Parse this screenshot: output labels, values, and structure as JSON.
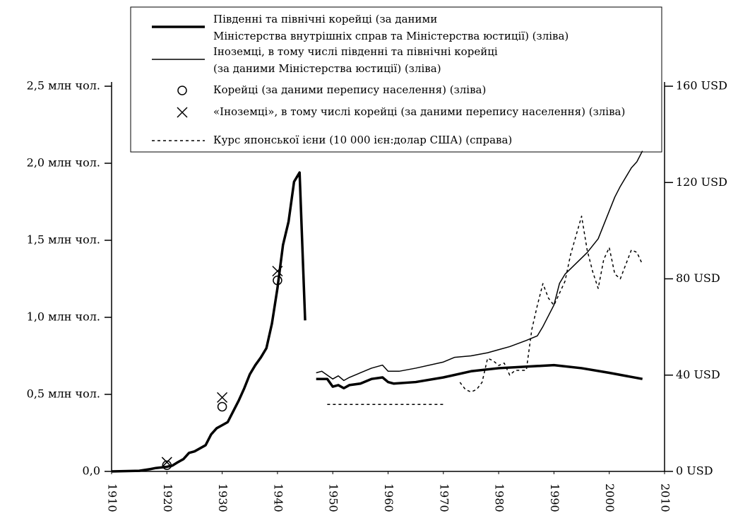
{
  "chart_data": {
    "type": "line",
    "xlim": [
      1910,
      2010
    ],
    "xticks": [
      1910,
      1920,
      1930,
      1940,
      1950,
      1960,
      1970,
      1980,
      1990,
      2000,
      2010
    ],
    "ylim": [
      0,
      2.5
    ],
    "yticks": [
      {
        "value": 0,
        "label": "0,0"
      },
      {
        "value": 0.5,
        "label": "0,5 млн чол."
      },
      {
        "value": 1,
        "label": "1,0 млн чол."
      },
      {
        "value": 1.5,
        "label": "1,5 млн чол."
      },
      {
        "value": 2,
        "label": "2,0 млн чол."
      },
      {
        "value": 2.5,
        "label": "2,5 млн чол."
      }
    ],
    "y2lim": [
      0,
      160
    ],
    "y2ticks": [
      {
        "value": 0,
        "label": "0 USD"
      },
      {
        "value": 40,
        "label": "40 USD"
      },
      {
        "value": 80,
        "label": "80 USD"
      },
      {
        "value": 120,
        "label": "120 USD"
      },
      {
        "value": 160,
        "label": "160 USD"
      }
    ],
    "series": [
      {
        "name": [
          "Південні та північні корейці (за даними",
          "Міністерства внутрішніх справ та Міністерства юстиції) (зліва)"
        ],
        "color": "#000000",
        "style": "thick",
        "x": [
          1910,
          1915,
          1917,
          1918,
          1920,
          1921,
          1922,
          1923,
          1924,
          1925,
          1926,
          1927,
          1928,
          1929,
          1930,
          1931,
          1932,
          1933,
          1934,
          1935,
          1936,
          1937,
          1938,
          1939,
          1940,
          1941,
          1942,
          1943,
          1944,
          1945,
          1946,
          1947,
          1948,
          1949,
          1950,
          1951,
          1952,
          1953,
          1955,
          1957,
          1959,
          1960,
          1961,
          1965,
          1970,
          1975,
          1980,
          1985,
          1990,
          1995,
          2000,
          2006
        ],
        "values": [
          0,
          0.004,
          0.015,
          0.022,
          0.03,
          0.038,
          0.06,
          0.08,
          0.12,
          0.13,
          0.15,
          0.17,
          0.24,
          0.28,
          0.3,
          0.32,
          0.39,
          0.46,
          0.54,
          0.63,
          0.69,
          0.74,
          0.8,
          0.96,
          1.19,
          1.47,
          1.62,
          1.88,
          1.94,
          0.98,
          null,
          0.6,
          0.6,
          0.6,
          0.55,
          0.56,
          0.54,
          0.56,
          0.57,
          0.6,
          0.61,
          0.58,
          0.57,
          0.58,
          0.61,
          0.65,
          0.67,
          0.68,
          0.69,
          0.67,
          0.64,
          0.6
        ]
      },
      {
        "name": [
          "Іноземці, в тому числі південні та північні корейці",
          "(за даними Міністерства юстиції) (зліва)"
        ],
        "color": "#000000",
        "style": "thin",
        "x": [
          1947,
          1948,
          1950,
          1951,
          1952,
          1953,
          1955,
          1957,
          1959,
          1960,
          1962,
          1965,
          1970,
          1972,
          1975,
          1978,
          1980,
          1982,
          1985,
          1987,
          1988,
          1990,
          1991,
          1992,
          1994,
          1996,
          1998,
          2000,
          2001,
          2002,
          2004,
          2005,
          2006
        ],
        "values": [
          0.64,
          0.65,
          0.6,
          0.62,
          0.59,
          0.61,
          0.64,
          0.67,
          0.69,
          0.65,
          0.65,
          0.67,
          0.71,
          0.74,
          0.75,
          0.77,
          0.79,
          0.81,
          0.85,
          0.88,
          0.94,
          1.08,
          1.22,
          1.28,
          1.35,
          1.42,
          1.51,
          1.69,
          1.78,
          1.85,
          1.97,
          2.01,
          2.08
        ]
      },
      {
        "name": [
          "Корейці (за даними перепису населення) (зліва)"
        ],
        "color": "#000000",
        "style": "circle",
        "x": [
          1920,
          1930,
          1940
        ],
        "values": [
          0.04,
          0.42,
          1.24
        ]
      },
      {
        "name": [
          "«Іноземці», в тому числі корейці (за даними перепису населення) (зліва)"
        ],
        "color": "#000000",
        "style": "cross",
        "x": [
          1920,
          1930,
          1940
        ],
        "values": [
          0.06,
          0.48,
          1.3
        ]
      },
      {
        "name": [
          "Курс японської ієни (10 000 ієн:долар США) (справа)"
        ],
        "color": "#000000",
        "style": "dashed",
        "axis": "y2",
        "x": [
          1949,
          1970,
          1971,
          1973,
          1974,
          1975,
          1976,
          1977,
          1978,
          1979,
          1980,
          1981,
          1982,
          1983,
          1984,
          1985,
          1986,
          1987,
          1988,
          1989,
          1990,
          1991,
          1992,
          1993,
          1994,
          1995,
          1996,
          1997,
          1998,
          1999,
          2000,
          2001,
          2002,
          2003,
          2004,
          2005,
          2006
        ],
        "values": [
          27.8,
          27.8,
          null,
          37,
          34,
          33,
          34,
          37,
          47,
          46,
          44,
          45,
          40,
          42,
          42,
          42,
          59,
          69,
          78,
          72,
          69,
          74,
          79,
          90,
          98,
          106,
          92,
          83,
          76,
          88,
          93,
          82,
          80,
          86,
          92,
          91,
          86
        ]
      }
    ]
  }
}
